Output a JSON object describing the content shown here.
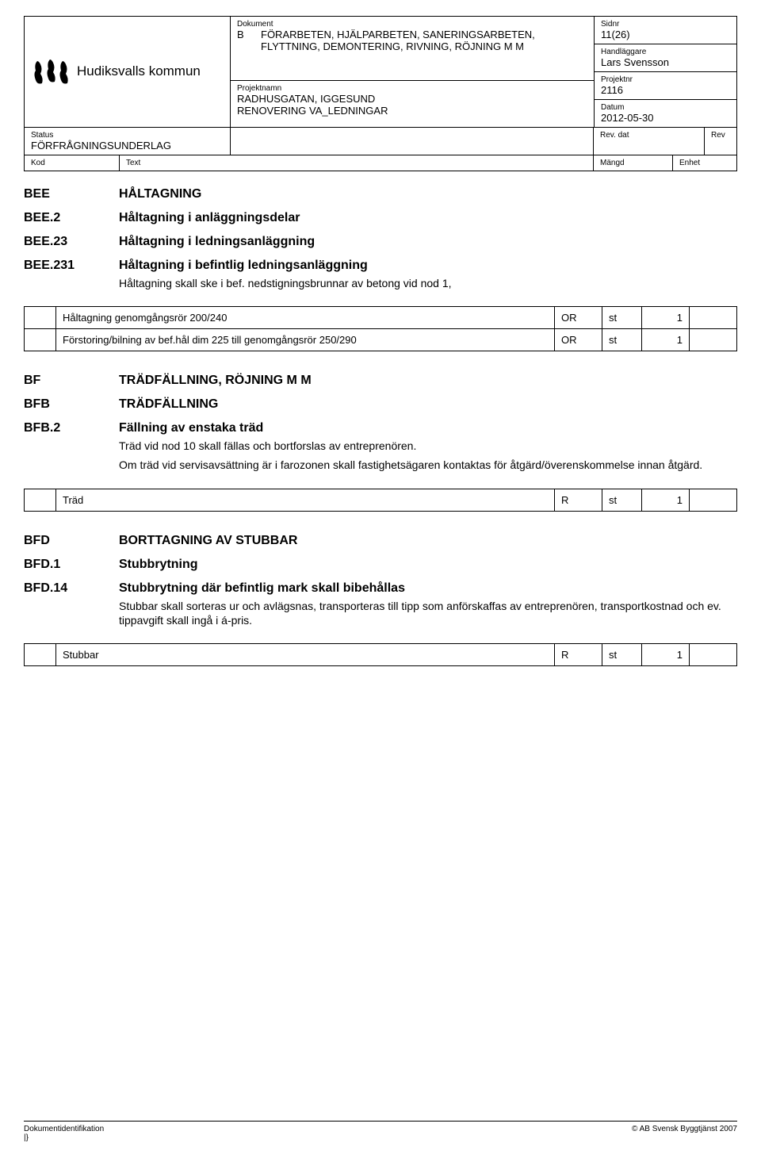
{
  "header": {
    "logo_name": "Hudiksvalls kommun",
    "dokument_label": "Dokument",
    "doc_prefix": "B",
    "doc_title": "FÖRARBETEN, HJÄLPARBETEN, SANERINGSARBETEN, FLYTTNING, DEMONTERING, RIVNING, RÖJNING M M",
    "projektnamn_label": "Projektnamn",
    "projektnamn_1": "RADHUSGATAN, IGGESUND",
    "projektnamn_2": "RENOVERING VA_LEDNINGAR",
    "sidnr_label": "Sidnr",
    "sidnr": "11(26)",
    "handlaggare_label": "Handläggare",
    "handlaggare": "Lars Svensson",
    "projektnr_label": "Projektnr",
    "projektnr": "2116",
    "datum_label": "Datum",
    "datum": "2012-05-30",
    "status_label": "Status",
    "status": "FÖRFRÅGNINGSUNDERLAG",
    "revdat_label": "Rev. dat",
    "rev_label": "Rev",
    "kod_label": "Kod",
    "text_label": "Text",
    "mangd_label": "Mängd",
    "enhet_label": "Enhet"
  },
  "sections": [
    {
      "code": "BEE",
      "title": "HÅLTAGNING",
      "body": []
    },
    {
      "code": "BEE.2",
      "title": "Håltagning i anläggningsdelar",
      "body": []
    },
    {
      "code": "BEE.23",
      "title": "Håltagning i ledningsanläggning",
      "body": []
    },
    {
      "code": "BEE.231",
      "title": "Håltagning i befintlig ledningsanläggning",
      "body": [
        "Håltagning skall ske i bef. nedstigningsbrunnar av betong vid nod 1,"
      ]
    }
  ],
  "table1": {
    "rows": [
      {
        "desc": "Håltagning genomgångsrör 200/240",
        "c1": "OR",
        "c2": "st",
        "c3": "1"
      },
      {
        "desc": "Förstoring/bilning av bef.hål dim 225 till genomgångsrör 250/290",
        "c1": "OR",
        "c2": "st",
        "c3": "1"
      }
    ]
  },
  "sections2": [
    {
      "code": "BF",
      "title": "TRÄDFÄLLNING, RÖJNING M M",
      "body": []
    },
    {
      "code": "BFB",
      "title": "TRÄDFÄLLNING",
      "body": []
    },
    {
      "code": "BFB.2",
      "title": "Fällning av enstaka träd",
      "body": [
        "Träd vid nod 10 skall fällas och bortforslas av entreprenören.",
        "Om träd vid servisavsättning är i farozonen skall fastighetsägaren kontaktas för åtgärd/överenskommelse innan åtgärd."
      ]
    }
  ],
  "table2": {
    "rows": [
      {
        "desc": "Träd",
        "c1": "R",
        "c2": "st",
        "c3": "1"
      }
    ]
  },
  "sections3": [
    {
      "code": "BFD",
      "title": "BORTTAGNING AV STUBBAR",
      "body": []
    },
    {
      "code": "BFD.1",
      "title": "Stubbrytning",
      "body": []
    },
    {
      "code": "BFD.14",
      "title": "Stubbrytning där befintlig mark skall bibehållas",
      "body": [
        "Stubbar skall sorteras ur och avlägsnas, transporteras till tipp som anförskaffas av entreprenören, transportkostnad och ev. tippavgift skall ingå i á-pris."
      ]
    }
  ],
  "table3": {
    "rows": [
      {
        "desc": "Stubbar",
        "c1": "R",
        "c2": "st",
        "c3": "1"
      }
    ]
  },
  "footer": {
    "ident_label": "Dokumentidentifikation",
    "ident": "|}",
    "copyright": "© AB Svensk Byggtjänst 2007"
  },
  "colors": {
    "border": "#000000",
    "text": "#000000",
    "bg": "#ffffff"
  }
}
